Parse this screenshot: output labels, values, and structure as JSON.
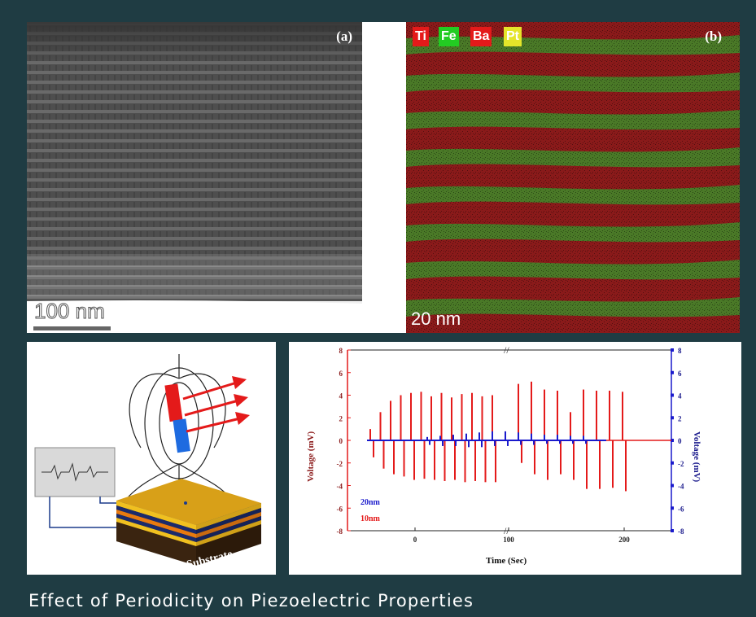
{
  "caption": "Effect of Periodicity on Piezoelectric Properties",
  "panel_a": {
    "label": "(a)",
    "scale_bar": "100 nm"
  },
  "panel_b": {
    "label": "(b)",
    "scale_bar": "20 nm",
    "elements": [
      {
        "symbol": "Ti",
        "color": "#e41a1a"
      },
      {
        "symbol": "Fe",
        "color": "#22cc22"
      },
      {
        "symbol": "Ba",
        "color": "#e41a1a"
      },
      {
        "symbol": "Pt",
        "color": "#e5e52a"
      }
    ]
  },
  "panel_c": {
    "substrate_label": "Substrate"
  },
  "colors": {
    "left_axis": "#e41a1a",
    "right_axis": "#1a1acc",
    "background": "#1f3c43"
  },
  "chart_data": {
    "type": "line",
    "title": "",
    "xlabel": "Time (Sec)",
    "ylabel_left": "Voltage (mV)",
    "ylabel_right": "Voltage (mV)",
    "ylim_left": [
      -8,
      8
    ],
    "ylim_right": [
      -8,
      8
    ],
    "left_ticks": [
      "8",
      "6",
      "4",
      "2",
      "0",
      "-2",
      "-4",
      "-6",
      "-8"
    ],
    "right_ticks": [
      "8",
      "6",
      "4",
      "2",
      "0",
      "-2",
      "-4",
      "-6",
      "-8"
    ],
    "x_ticks": [
      "0",
      "100",
      "200"
    ],
    "axis_break": true,
    "series": [
      {
        "name": "20nm",
        "color": "#1a1acc",
        "peaks": [
          0.3,
          0.4,
          0.5,
          0.6,
          0.7,
          0.8,
          0.8,
          0.7,
          0.6,
          0.5,
          0.5,
          0.4,
          0.4
        ],
        "troughs": [
          -0.4,
          -0.5,
          -0.5,
          -0.6,
          -0.6,
          -0.5,
          -0.5,
          -0.4,
          -0.4,
          -0.3,
          -0.3,
          -0.3,
          -0.3
        ]
      },
      {
        "name": "10nm",
        "color": "#e41a1a",
        "peaks": [
          1.0,
          2.5,
          3.5,
          4.0,
          4.2,
          4.3,
          3.9,
          4.2,
          3.8,
          4.1,
          4.2,
          3.9,
          4.0,
          5.0,
          5.2,
          4.5,
          4.4,
          2.5,
          4.5,
          4.4,
          4.4,
          4.3
        ],
        "troughs": [
          -1.5,
          -2.5,
          -3.0,
          -3.2,
          -3.5,
          -3.4,
          -3.5,
          -3.6,
          -3.5,
          -3.7,
          -3.6,
          -3.7,
          -3.7,
          -2.0,
          -3.0,
          -3.5,
          -3.0,
          -3.5,
          -4.3,
          -4.3,
          -4.2,
          -4.5
        ]
      }
    ]
  }
}
